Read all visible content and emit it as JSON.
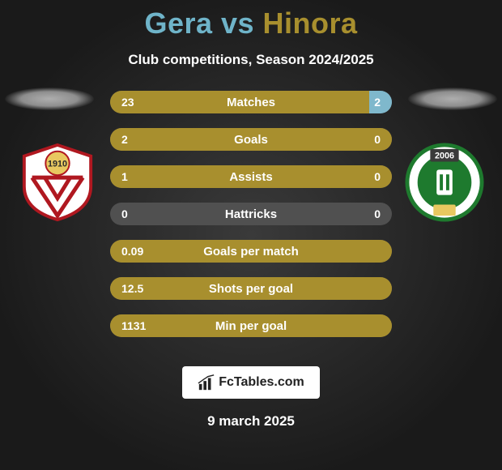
{
  "title": {
    "player1": "Gera",
    "vs": " vs ",
    "player2": "Hinora",
    "color1": "#6fb4c9",
    "color2": "#a88f2e"
  },
  "subtitle": "Club competitions, Season 2024/2025",
  "colors": {
    "p1_fill": "#a88f2e",
    "p2_fill": "#7fb8cc",
    "neutral_bg": "#505050",
    "text": "#ffffff"
  },
  "stats": [
    {
      "label": "Matches",
      "v1": "23",
      "v2": "2",
      "p1": 0.92,
      "p2": 0.08
    },
    {
      "label": "Goals",
      "v1": "2",
      "v2": "0",
      "p1": 1.0,
      "p2": 0.0
    },
    {
      "label": "Assists",
      "v1": "1",
      "v2": "0",
      "p1": 1.0,
      "p2": 0.0
    },
    {
      "label": "Hattricks",
      "v1": "0",
      "v2": "0",
      "p1": 0.0,
      "p2": 0.0
    },
    {
      "label": "Goals per match",
      "v1": "0.09",
      "v2": "",
      "p1": 1.0,
      "p2": 0.0
    },
    {
      "label": "Shots per goal",
      "v1": "12.5",
      "v2": "",
      "p1": 1.0,
      "p2": 0.0
    },
    {
      "label": "Min per goal",
      "v1": "1131",
      "v2": "",
      "p1": 1.0,
      "p2": 0.0
    }
  ],
  "branding": {
    "text": "FcTables.com"
  },
  "date": "9 march 2025",
  "crest_left": {
    "outer": "#ffffff",
    "border": "#b01820",
    "year": "1910",
    "year_bg": "#e8c860"
  },
  "crest_right": {
    "outer": "#ffffff",
    "ring": "#1e7a2e",
    "inner": "#1e7a2e",
    "year": "2006"
  }
}
